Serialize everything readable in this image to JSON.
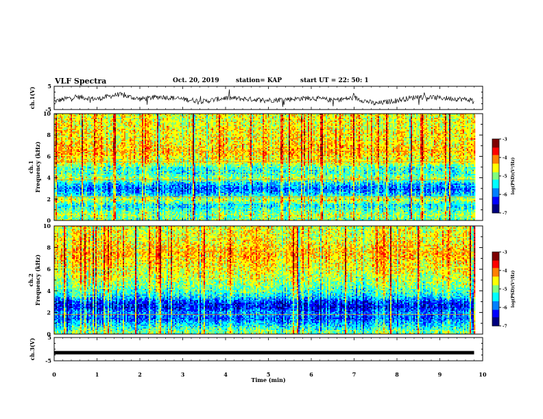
{
  "header": {
    "title": "VLF Spectra",
    "date": "Oct. 20, 2019",
    "station": "station= KAP",
    "start": "start  UT  =   22: 50: 1"
  },
  "chart_data": [
    {
      "type": "line",
      "ylabel": "ch.1(V)",
      "xlim": [
        0,
        10
      ],
      "ylim": [
        -5,
        5
      ],
      "y_ticks": [
        "5",
        "-5"
      ],
      "series": [
        {
          "x": [
            0,
            0.5,
            1,
            1.5,
            2,
            2.5,
            3,
            3.5,
            4,
            4.5,
            5,
            5.5,
            6,
            6.5,
            7,
            7.5,
            8,
            8.5,
            9,
            9.5,
            9.8
          ],
          "values": [
            -1.5,
            0.5,
            -0.5,
            1.5,
            -0.5,
            0.5,
            -0.5,
            -1.5,
            0,
            -0.5,
            -1,
            -0.5,
            0,
            -1,
            0,
            -2.5,
            -1,
            0.5,
            0,
            -0.5,
            -1
          ]
        }
      ]
    },
    {
      "type": "heatmap",
      "ylabel": "Frequency (kHz)",
      "channel_label": "ch.1",
      "xlim": [
        0,
        9.8
      ],
      "ylim": [
        0,
        10
      ],
      "y_ticks": [
        "0",
        "2",
        "4",
        "6",
        "8",
        "10"
      ],
      "colorbar": {
        "label": "log(PSD)(V²/Hz)",
        "range": [
          -7,
          -3
        ],
        "ticks": [
          "-3",
          "-4",
          "-5",
          "-6",
          "-7"
        ]
      },
      "colormap": [
        "#00007f",
        "#0000ff",
        "#0080ff",
        "#00ffff",
        "#80ff80",
        "#ffff00",
        "#ff8000",
        "#ff0000",
        "#7f0000"
      ],
      "frequency_profile": [
        {
          "f": 0.3,
          "v": -5.0
        },
        {
          "f": 0.6,
          "v": -4.8
        },
        {
          "f": 1.0,
          "v": -5.2
        },
        {
          "f": 1.5,
          "v": -5.5
        },
        {
          "f": 2.0,
          "v": -4.6
        },
        {
          "f": 2.5,
          "v": -5.6
        },
        {
          "f": 3.0,
          "v": -6.0
        },
        {
          "f": 3.5,
          "v": -5.6
        },
        {
          "f": 4.0,
          "v": -4.8
        },
        {
          "f": 4.5,
          "v": -5.3
        },
        {
          "f": 5.0,
          "v": -5.2
        },
        {
          "f": 5.5,
          "v": -4.6
        },
        {
          "f": 6.0,
          "v": -4.5
        },
        {
          "f": 6.5,
          "v": -4.3
        },
        {
          "f": 7.0,
          "v": -4.4
        },
        {
          "f": 7.5,
          "v": -4.5
        },
        {
          "f": 8.0,
          "v": -4.5
        },
        {
          "f": 8.5,
          "v": -4.5
        },
        {
          "f": 9.0,
          "v": -4.6
        },
        {
          "f": 9.5,
          "v": -4.6
        },
        {
          "f": 10.0,
          "v": -4.6
        }
      ],
      "lines_khz": [
        2.2,
        3.8,
        5.5,
        6.5
      ]
    },
    {
      "type": "heatmap",
      "ylabel": "Frequency (kHz)",
      "channel_label": "ch.2",
      "xlim": [
        0,
        9.8
      ],
      "ylim": [
        0,
        10
      ],
      "y_ticks": [
        "0",
        "2",
        "4",
        "6",
        "8",
        "10"
      ],
      "colorbar": {
        "label": "log(PSD)(V²/Hz)",
        "range": [
          -7,
          -3
        ],
        "ticks": [
          "-3",
          "-4",
          "-5",
          "-6",
          "-7"
        ]
      },
      "colormap": [
        "#00007f",
        "#0000ff",
        "#0080ff",
        "#00ffff",
        "#80ff80",
        "#ffff00",
        "#ff8000",
        "#ff0000",
        "#7f0000"
      ],
      "frequency_profile": [
        {
          "f": 0.3,
          "v": -5.0
        },
        {
          "f": 0.6,
          "v": -5.3
        },
        {
          "f": 1.0,
          "v": -5.6
        },
        {
          "f": 1.5,
          "v": -6.0
        },
        {
          "f": 2.0,
          "v": -5.8
        },
        {
          "f": 2.5,
          "v": -6.3
        },
        {
          "f": 3.0,
          "v": -6.2
        },
        {
          "f": 3.5,
          "v": -5.5
        },
        {
          "f": 4.0,
          "v": -5.2
        },
        {
          "f": 4.5,
          "v": -5.0
        },
        {
          "f": 5.0,
          "v": -4.8
        },
        {
          "f": 5.5,
          "v": -4.7
        },
        {
          "f": 6.0,
          "v": -4.6
        },
        {
          "f": 6.5,
          "v": -4.5
        },
        {
          "f": 7.0,
          "v": -4.4
        },
        {
          "f": 7.5,
          "v": -4.3
        },
        {
          "f": 8.0,
          "v": -4.4
        },
        {
          "f": 8.5,
          "v": -4.5
        },
        {
          "f": 9.0,
          "v": -4.6
        },
        {
          "f": 9.5,
          "v": -4.6
        },
        {
          "f": 10.0,
          "v": -4.7
        }
      ],
      "lines_khz": [
        1.8,
        7.6
      ]
    },
    {
      "type": "line",
      "ylabel": "ch.3(V)",
      "xlabel": "Time (min)",
      "xlim": [
        0,
        10
      ],
      "ylim": [
        -5,
        5
      ],
      "y_ticks": [
        "5",
        "-5"
      ],
      "x_ticks": [
        "0",
        "1",
        "2",
        "3",
        "4",
        "5",
        "6",
        "7",
        "8",
        "9",
        "10"
      ],
      "series": [
        {
          "x": [
            0,
            9.8
          ],
          "values": [
            -1.5,
            -1.5
          ]
        }
      ]
    }
  ]
}
